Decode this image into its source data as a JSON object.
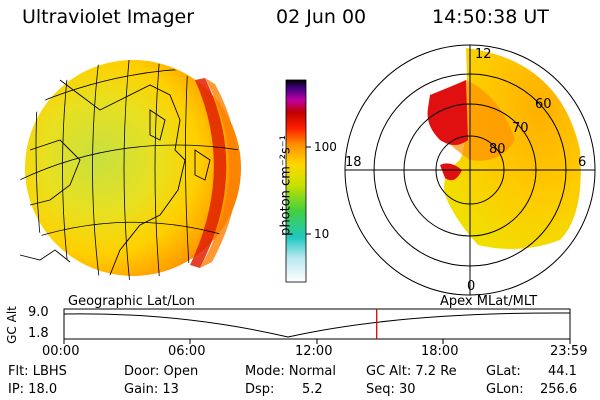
{
  "header": {
    "instrument": "Ultraviolet Imager",
    "date": "02 Jun 00",
    "time": "14:50:38 UT"
  },
  "colorbar": {
    "label": "photon cm⁻²s⁻¹",
    "ticks": [
      "100",
      "10"
    ]
  },
  "panels": {
    "left_caption": "Geographic Lat/Lon",
    "right_caption": "Apex MLat/MLT"
  },
  "polar": {
    "mlt_labels": {
      "top": "12",
      "left": "18",
      "right": "6",
      "bottom": "0"
    },
    "lat_labels": [
      "60",
      "70",
      "80"
    ]
  },
  "altitude_plot": {
    "ylabel": "GC Alt",
    "ymax": "9.0",
    "ymin": "1.8",
    "xticks": [
      "00:00",
      "06:00",
      "12:00",
      "18:00",
      "23:59"
    ],
    "current_time_fraction": 0.618
  },
  "info": {
    "flt": "Flt: LBHS",
    "ip": "IP: 18.0",
    "door": "Door: Open",
    "gain": "Gain: 13",
    "mode": "Mode: Normal",
    "dsp_label": "Dsp:",
    "dsp_value": "5.2",
    "gcalt": "GC Alt: 7.2 Re",
    "seq": "Seq: 30",
    "glat_label": "GLat:",
    "glat_value": "44.1",
    "glon_label": "GLon:",
    "glon_value": "256.6"
  },
  "colors": {
    "marker": "#e00000"
  }
}
